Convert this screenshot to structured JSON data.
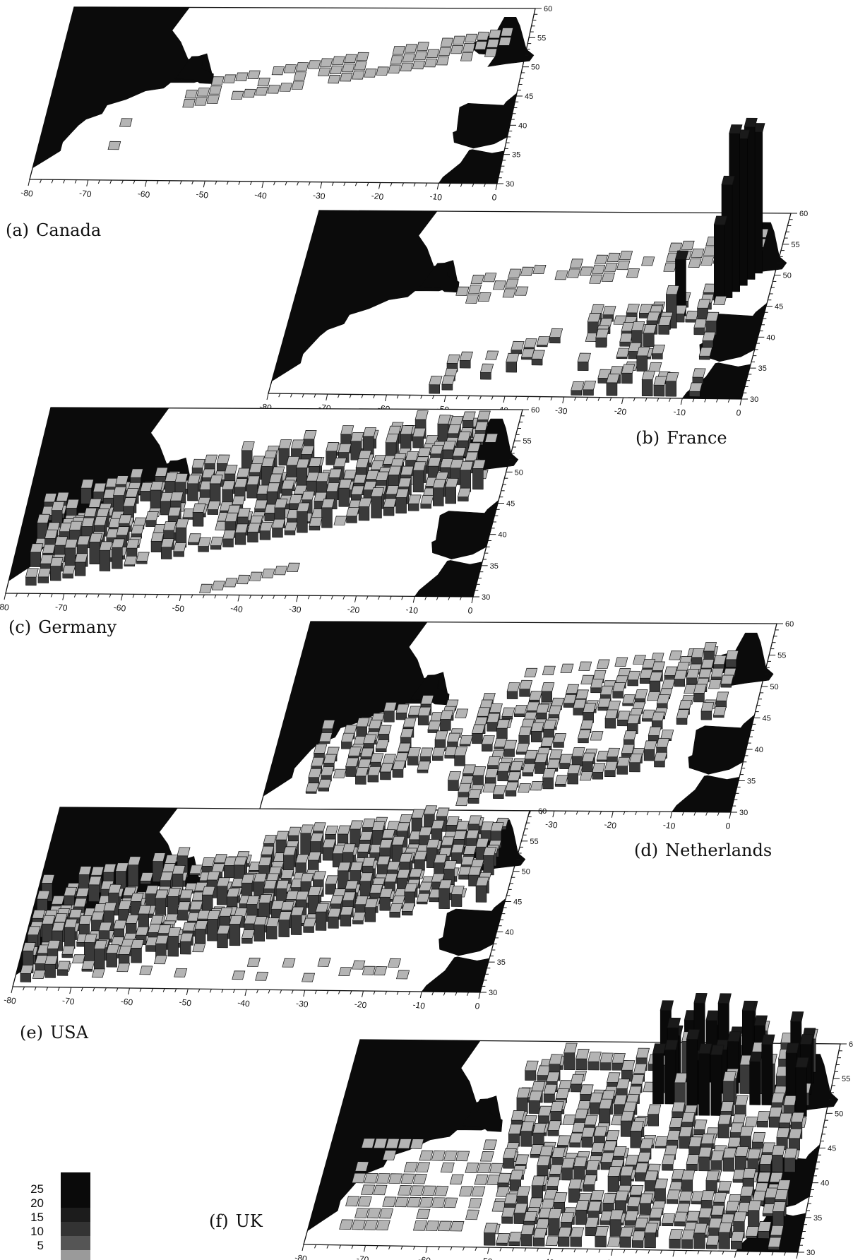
{
  "figure": {
    "panels": [
      {
        "id": "a",
        "tag": "(a)",
        "name": "Canada",
        "peak": 0
      },
      {
        "id": "b",
        "tag": "(b)",
        "name": "France",
        "peak": 28
      },
      {
        "id": "c",
        "tag": "(c)",
        "name": "Germany",
        "peak": 4
      },
      {
        "id": "d",
        "tag": "(d)",
        "name": "Netherlands",
        "peak": 2
      },
      {
        "id": "e",
        "tag": "(e)",
        "name": "USA",
        "peak": 4
      },
      {
        "id": "f",
        "tag": "(f)",
        "name": "UK",
        "peak": 14
      }
    ],
    "x_ticks": [
      "-80",
      "-70",
      "-60",
      "-50",
      "-40",
      "-30",
      "-20",
      "-10",
      "0"
    ],
    "y_ticks": [
      "30",
      "35",
      "40",
      "45",
      "50",
      "55",
      "60"
    ],
    "legend": {
      "levels": [
        "25",
        "20",
        "15",
        "10",
        "5"
      ],
      "colors": [
        "#0a0a0a",
        "#1c1c1c",
        "#333333",
        "#555555",
        "#9a9a9a"
      ]
    }
  }
}
